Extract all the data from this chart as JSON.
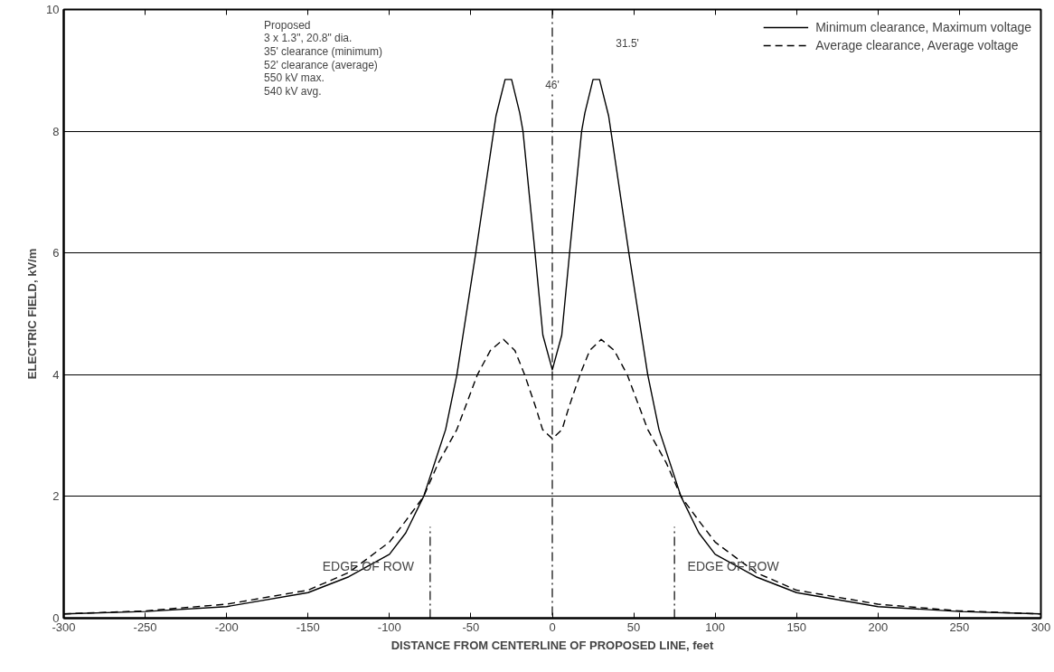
{
  "chart_data": {
    "type": "line",
    "xlabel": "DISTANCE FROM CENTERLINE OF PROPOSED LINE, feet",
    "ylabel": "ELECTRIC FIELD, kV/m",
    "xlim": [
      -300,
      300
    ],
    "ylim": [
      0,
      10
    ],
    "xticks": [
      -300,
      -250,
      -200,
      -150,
      -100,
      -50,
      0,
      50,
      100,
      150,
      200,
      250,
      300
    ],
    "yticks": [
      0,
      2,
      4,
      6,
      8,
      10
    ],
    "grid": "y",
    "legend": "top right",
    "series": [
      {
        "name": "Minimum clearance, Maximum voltage",
        "color": "#000000",
        "line_style": "solid",
        "x": [
          -300,
          -250,
          -200,
          -150,
          -125,
          -100,
          -90,
          -79,
          -65.5,
          -58.6,
          -47,
          -36,
          -34.6,
          -29,
          -25,
          -20,
          -18,
          -10.6,
          -5.8,
          0,
          5.8,
          10.6,
          18,
          20,
          25,
          29,
          34.6,
          36,
          47,
          58.6,
          65.5,
          79,
          90,
          100,
          125,
          150,
          200,
          250,
          300
        ],
        "values": [
          0.07,
          0.11,
          0.19,
          0.42,
          0.68,
          1.05,
          1.4,
          2.0,
          3.1,
          4.0,
          6.0,
          8.0,
          8.25,
          8.85,
          8.85,
          8.3,
          8.0,
          6.0,
          4.65,
          4.08,
          4.65,
          6.0,
          8.0,
          8.3,
          8.85,
          8.85,
          8.25,
          8.0,
          6.0,
          4.0,
          3.1,
          2.0,
          1.4,
          1.05,
          0.68,
          0.42,
          0.19,
          0.11,
          0.07
        ]
      },
      {
        "name": "Average clearance, Average voltage",
        "color": "#000000",
        "line_style": "dashed",
        "x": [
          -300,
          -250,
          -200,
          -150,
          -125,
          -100,
          -90,
          -79,
          -70,
          -58.6,
          -46,
          -38,
          -30,
          -23,
          -17,
          -10,
          -6,
          0,
          6,
          10,
          17,
          23,
          30,
          38,
          46,
          58.6,
          70,
          79,
          90,
          100,
          125,
          150,
          200,
          250,
          300
        ],
        "values": [
          0.07,
          0.12,
          0.23,
          0.46,
          0.75,
          1.25,
          1.6,
          2.0,
          2.55,
          3.1,
          4.0,
          4.4,
          4.58,
          4.4,
          4.0,
          3.45,
          3.1,
          2.95,
          3.1,
          3.45,
          4.0,
          4.4,
          4.58,
          4.4,
          4.0,
          3.1,
          2.55,
          2.0,
          1.6,
          1.25,
          0.75,
          0.46,
          0.23,
          0.12,
          0.07
        ]
      }
    ],
    "ref_lines": [
      {
        "axis": "x",
        "value": 0,
        "line_style": "dashdot"
      },
      {
        "axis": "x",
        "value": -75,
        "label": "EDGE OF ROW",
        "line_style": "dashdot"
      },
      {
        "axis": "x",
        "value": 75,
        "label": "EDGE OF ROW",
        "line_style": "dashdot"
      }
    ],
    "annotations": [
      "Proposed\n3 x 1.3\", 20.8\" dia.\n35' clearance (minimum)\n52' clearance (average)\n550 kV max.\n540 kV avg.",
      "46'",
      "31.5'"
    ]
  }
}
